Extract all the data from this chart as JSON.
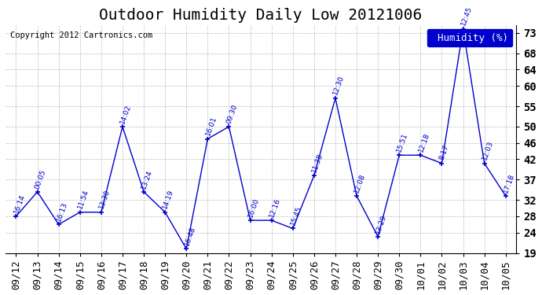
{
  "title": "Outdoor Humidity Daily Low 20121006",
  "copyright": "Copyright 2012 Cartronics.com",
  "legend_label": "Humidity (%)",
  "ylabel": "Humidity (%)",
  "ylim": [
    19,
    75
  ],
  "yticks": [
    19,
    24,
    28,
    32,
    37,
    42,
    46,
    50,
    55,
    60,
    64,
    68,
    73
  ],
  "background_color": "#ffffff",
  "line_color": "#0000cc",
  "grid_color": "#aaaaaa",
  "dates": [
    "09/12",
    "09/13",
    "09/14",
    "09/15",
    "09/16",
    "09/17",
    "09/18",
    "09/19",
    "09/20",
    "09/21",
    "09/22",
    "09/23",
    "09/24",
    "09/25",
    "09/26",
    "09/27",
    "09/28",
    "09/29",
    "09/30",
    "10/01",
    "10/02",
    "10/03",
    "10/04",
    "10/05"
  ],
  "values": [
    28,
    34,
    26,
    29,
    29,
    50,
    34,
    29,
    20,
    47,
    50,
    27,
    27,
    25,
    38,
    57,
    33,
    23,
    43,
    43,
    41,
    74,
    41,
    33
  ],
  "time_labels": [
    "16:14",
    "00:05",
    "16:13",
    "11:54",
    "13:30",
    "14:02",
    "13:24",
    "14:19",
    "16:48",
    "16:01",
    "09:30",
    "16:00",
    "12:16",
    "15:45",
    "11:38",
    "12:30",
    "12:08",
    "13:29",
    "15:51",
    "12:18",
    "8:17",
    "12:45",
    "12:03",
    "17:18"
  ],
  "title_fontsize": 14,
  "tick_fontsize": 9,
  "label_fontsize": 8
}
